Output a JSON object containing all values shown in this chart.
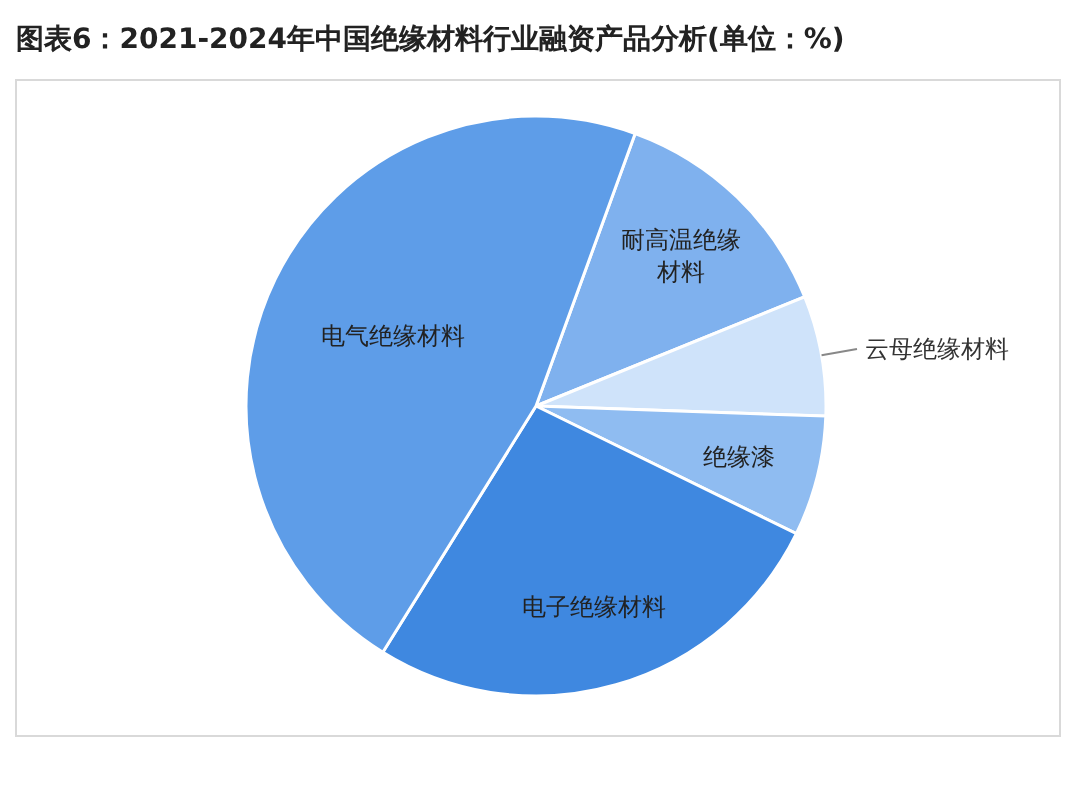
{
  "chart_data": {
    "type": "pie",
    "title": "图表6：2021-2024年中国绝缘材料行业融资产品分析(单位：%)",
    "categories": [
      "耐高温绝缘材料",
      "云母绝缘材料",
      "绝缘漆",
      "电子绝缘材料",
      "电气绝缘材料"
    ],
    "values": [
      13.3,
      6.7,
      6.7,
      26.6,
      46.7
    ],
    "colors": [
      "#7fb1ee",
      "#cfe3fa",
      "#8fbcf1",
      "#3f88e0",
      "#5e9de8"
    ]
  }
}
